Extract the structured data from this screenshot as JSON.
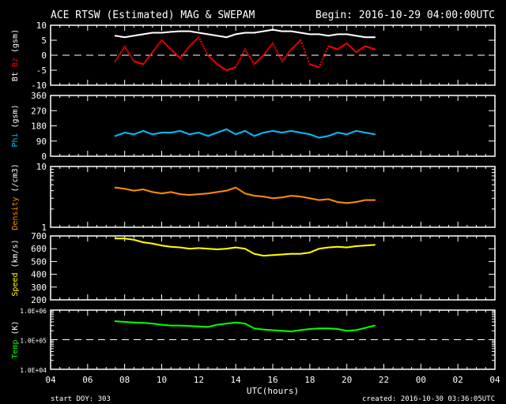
{
  "chart_data": {
    "type": "scatter",
    "title": "ACE RTSW (Estimated) MAG & SWEPAM",
    "begin": "Begin: 2016-10-29 04:00:00UTC",
    "xlabel": "UTC(hours)",
    "start_doy": "start DOY: 303",
    "created": "created: 2016-10-30 03:36:05UTC",
    "x_ticks": [
      "04",
      "06",
      "08",
      "10",
      "12",
      "14",
      "16",
      "18",
      "20",
      "22",
      "00",
      "02",
      "04"
    ],
    "xlim_hours_since_begin": [
      0,
      24
    ],
    "x": [
      3.5,
      4,
      4.5,
      5,
      5.5,
      6,
      6.5,
      7,
      7.5,
      8,
      8.5,
      9,
      9.5,
      10,
      10.5,
      11,
      11.5,
      12,
      12.5,
      13,
      13.5,
      14,
      14.5,
      15,
      15.5,
      16,
      16.5,
      17,
      17.5
    ],
    "panels": [
      {
        "name": "mag",
        "ylabel": [
          "Bt",
          "Bz",
          "(gsm)"
        ],
        "ylabel_colors": [
          "#ffffff",
          "#ff0000",
          "#ffffff"
        ],
        "scale": "linear",
        "ylim": [
          -10,
          10
        ],
        "y_ticks": [
          "10",
          "5",
          "0",
          "-5",
          "-10"
        ],
        "dashed_at": 0,
        "series": [
          {
            "name": "Bt",
            "color": "#ffffff",
            "values": [
              6.5,
              6,
              6.5,
              7,
              7.5,
              7.5,
              7.8,
              8,
              8,
              7.5,
              7,
              6.5,
              6,
              7,
              7.5,
              7.5,
              8,
              8.5,
              8,
              8,
              7.5,
              7,
              7,
              6.5,
              7,
              7,
              6.5,
              6,
              6
            ]
          },
          {
            "name": "Bz",
            "color": "#ff0000",
            "values": [
              -2,
              3,
              -2,
              -3,
              1,
              5,
              2,
              -1,
              3,
              6,
              0,
              -3,
              -5,
              -4,
              2,
              -3,
              0,
              4,
              -2,
              2,
              5,
              -3,
              -4,
              3,
              2,
              4,
              1,
              3,
              2
            ]
          }
        ]
      },
      {
        "name": "phi",
        "ylabel": [
          "Phi",
          "(gsm)"
        ],
        "ylabel_colors": [
          "#00bfff",
          "#ffffff"
        ],
        "scale": "linear",
        "ylim": [
          0,
          360
        ],
        "y_ticks": [
          "360",
          "270",
          "180",
          "90",
          "0"
        ],
        "series": [
          {
            "name": "Phi",
            "color": "#00bfff",
            "values": [
              120,
              140,
              130,
              150,
              130,
              140,
              140,
              150,
              130,
              140,
              120,
              140,
              160,
              130,
              150,
              120,
              140,
              150,
              140,
              150,
              140,
              130,
              110,
              120,
              140,
              130,
              150,
              140,
              130
            ]
          }
        ]
      },
      {
        "name": "density",
        "ylabel": [
          "Density",
          "(/cm3)"
        ],
        "ylabel_colors": [
          "#ff8c00",
          "#ffffff"
        ],
        "scale": "log",
        "ylim": [
          1,
          10
        ],
        "y_ticks": [
          "10",
          "1"
        ],
        "series": [
          {
            "name": "Density",
            "color": "#ff8c00",
            "values": [
              4.5,
              4.3,
              4.0,
              4.2,
              3.8,
              3.6,
              3.8,
              3.5,
              3.4,
              3.5,
              3.6,
              3.8,
              4.0,
              4.5,
              3.6,
              3.3,
              3.2,
              3.0,
              3.1,
              3.3,
              3.2,
              3.0,
              2.8,
              2.9,
              2.6,
              2.5,
              2.6,
              2.8,
              2.8
            ]
          }
        ]
      },
      {
        "name": "speed",
        "ylabel": [
          "Speed",
          "(km/s)"
        ],
        "ylabel_colors": [
          "#ffff00",
          "#ffffff"
        ],
        "scale": "linear",
        "ylim": [
          200,
          700
        ],
        "y_ticks": [
          "700",
          "600",
          "500",
          "400",
          "300",
          "200"
        ],
        "series": [
          {
            "name": "Speed",
            "color": "#ffff00",
            "values": [
              680,
              680,
              670,
              650,
              640,
              625,
              615,
              610,
              600,
              605,
              600,
              595,
              600,
              610,
              600,
              560,
              545,
              550,
              555,
              560,
              560,
              570,
              600,
              610,
              615,
              610,
              620,
              625,
              630
            ]
          }
        ]
      },
      {
        "name": "temp",
        "ylabel": [
          "Temp",
          "(K)"
        ],
        "ylabel_colors": [
          "#00ff00",
          "#ffffff"
        ],
        "scale": "log",
        "ylim": [
          10000,
          1000000
        ],
        "y_ticks": [
          "1.0E+06",
          "1.0E+05",
          "1.0E+04"
        ],
        "dashed_at": 100000,
        "series": [
          {
            "name": "Temp",
            "color": "#00ff00",
            "values": [
              420000,
              400000,
              380000,
              370000,
              350000,
              320000,
              300000,
              300000,
              290000,
              280000,
              270000,
              320000,
              350000,
              380000,
              350000,
              240000,
              220000,
              210000,
              200000,
              190000,
              210000,
              230000,
              240000,
              240000,
              230000,
              200000,
              210000,
              250000,
              300000
            ]
          }
        ]
      }
    ]
  }
}
